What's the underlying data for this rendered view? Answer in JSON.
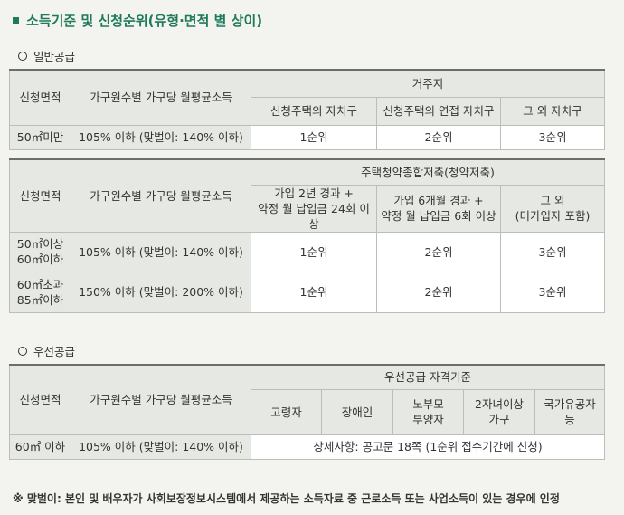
{
  "title": "소득기준 및 신청순위(유형·면적 별 상이)",
  "general": {
    "heading": "일반공급",
    "table1": {
      "col_area": "신청면적",
      "col_income": "가구원수별 가구당 월평균소득",
      "group": "거주지",
      "sub1": "신청주택의 자치구",
      "sub2": "신청주택의 연접 자치구",
      "sub3": "그 외 자치구",
      "row": {
        "area": "50㎡미만",
        "income": "105% 이하 (맞벌이: 140% 이하)",
        "r1": "1순위",
        "r2": "2순위",
        "r3": "3순위"
      }
    },
    "table2": {
      "col_area": "신청면적",
      "col_income": "가구원수별 가구당 월평균소득",
      "group": "주택청약종합저축(청약저축)",
      "sub1_l1": "가입 2년 경과 +",
      "sub1_l2": "약정 월 납입금 24회 이상",
      "sub2_l1": "가입 6개월 경과 +",
      "sub2_l2": "약정 월 납입금 6회 이상",
      "sub3_l1": "그 외",
      "sub3_l2": "(미가입자 포함)",
      "rows": [
        {
          "area_l1": "50㎡이상",
          "area_l2": "60㎡이하",
          "income": "105% 이하 (맞벌이: 140% 이하)",
          "r1": "1순위",
          "r2": "2순위",
          "r3": "3순위"
        },
        {
          "area_l1": "60㎡초과",
          "area_l2": "85㎡이하",
          "income": "150% 이하 (맞벌이: 200% 이하)",
          "r1": "1순위",
          "r2": "2순위",
          "r3": "3순위"
        }
      ]
    }
  },
  "priority": {
    "heading": "우선공급",
    "table": {
      "col_area": "신청면적",
      "col_income": "가구원수별 가구당 월평균소득",
      "group": "우선공급 자격기준",
      "c1": "고령자",
      "c2": "장애인",
      "c3_l1": "노부모",
      "c3_l2": "부양자",
      "c4_l1": "2자녀이상",
      "c4_l2": "가구",
      "c5_l1": "국가유공자",
      "c5_l2": "등",
      "row": {
        "area": "60㎡ 이하",
        "income": "105% 이하 (맞벌이: 140% 이하)",
        "detail": "상세사항: 공고문 18쪽 (1순위 접수기간에 신청)"
      }
    }
  },
  "footnote": "※ 맞벌이: 본인 및 배우자가 사회보장정보시스템에서 제공하는 소득자료 중 근로소득 또는 사업소득이 있는 경우에 인정"
}
